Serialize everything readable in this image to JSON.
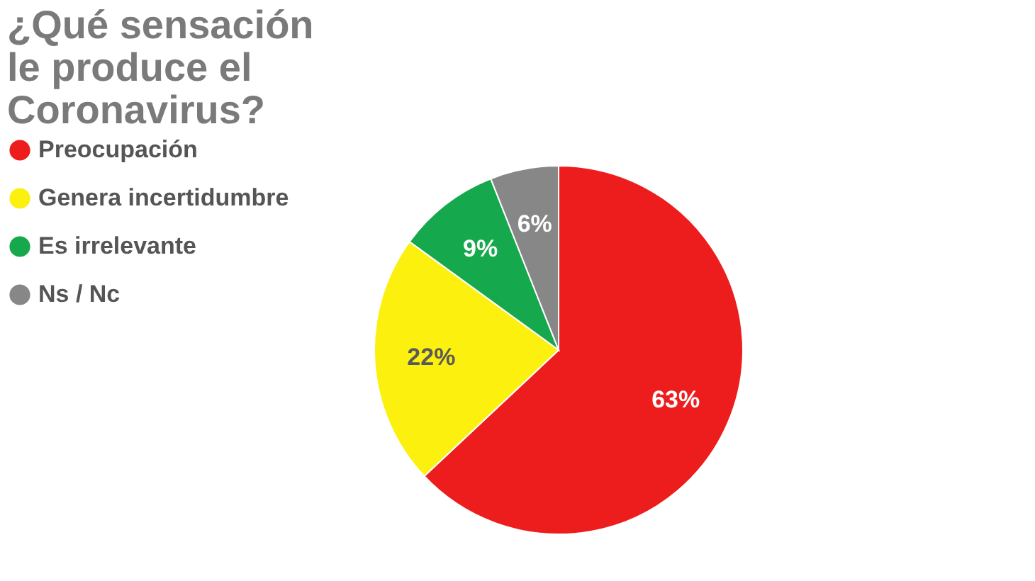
{
  "chart_data": {
    "type": "pie",
    "title": "¿Qué sensación le produce el Coronavirus?",
    "categories": [
      "Preocupación",
      "Genera incertidumbre",
      "Es irrelevante",
      "Ns / Nc"
    ],
    "values": [
      63,
      22,
      9,
      6
    ],
    "colors": [
      "#ee1d1d",
      "#fcf00f",
      "#16a84c",
      "#878787"
    ],
    "value_labels": [
      "63%",
      "22%",
      "9%",
      "6%"
    ],
    "legend": "left"
  }
}
